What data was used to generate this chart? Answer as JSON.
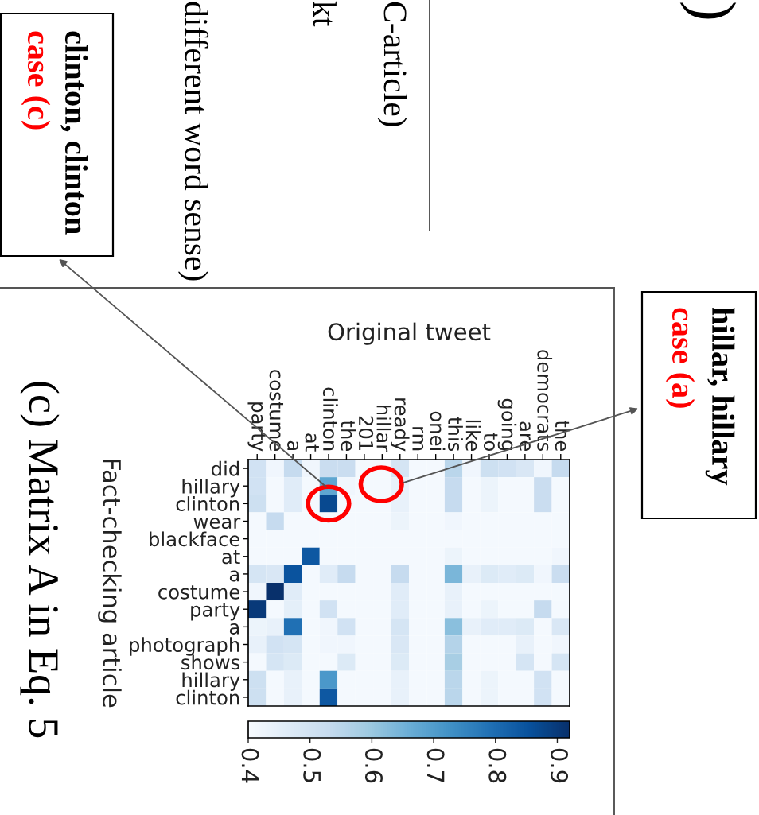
{
  "chart_data": {
    "type": "heatmap",
    "xlabel": "Original tweet",
    "ylabel": "Fact-checking article",
    "categories": [
      "party",
      "costume",
      "a",
      "at",
      "clinton",
      "the",
      "201",
      "hillar",
      "ready",
      "rm",
      "onei",
      "this",
      "like",
      "to",
      "going",
      "are",
      "democrats",
      "the"
    ],
    "y_categories": [
      "did",
      "hillary",
      "clinton",
      "wear",
      "blackface",
      "at",
      "a",
      "costume",
      "party",
      "a",
      "photograph",
      "shows",
      "hillary",
      "clinton"
    ],
    "cells": [
      [
        0.5,
        0.42,
        0.53,
        0.42,
        0.52,
        0.52,
        0.41,
        0.41,
        0.49,
        0.41,
        0.41,
        0.55,
        0.42,
        0.51,
        0.5,
        0.48,
        0.42,
        0.53
      ],
      [
        0.5,
        0.41,
        0.46,
        0.41,
        0.68,
        0.42,
        0.41,
        0.41,
        0.44,
        0.41,
        0.41,
        0.53,
        0.41,
        0.43,
        0.41,
        0.41,
        0.52,
        0.41
      ],
      [
        0.51,
        0.41,
        0.46,
        0.41,
        0.87,
        0.41,
        0.41,
        0.41,
        0.44,
        0.41,
        0.41,
        0.53,
        0.41,
        0.43,
        0.41,
        0.41,
        0.52,
        0.41
      ],
      [
        0.41,
        0.53,
        0.41,
        0.41,
        0.41,
        0.41,
        0.41,
        0.41,
        0.43,
        0.41,
        0.41,
        0.42,
        0.41,
        0.41,
        0.41,
        0.41,
        0.41,
        0.41
      ],
      [
        0.41,
        0.41,
        0.41,
        0.41,
        0.41,
        0.41,
        0.41,
        0.41,
        0.41,
        0.41,
        0.41,
        0.41,
        0.41,
        0.41,
        0.41,
        0.41,
        0.41,
        0.41
      ],
      [
        0.41,
        0.41,
        0.41,
        0.84,
        0.41,
        0.41,
        0.41,
        0.41,
        0.41,
        0.41,
        0.41,
        0.43,
        0.41,
        0.41,
        0.41,
        0.41,
        0.41,
        0.42
      ],
      [
        0.49,
        0.48,
        0.85,
        0.41,
        0.46,
        0.53,
        0.41,
        0.41,
        0.53,
        0.41,
        0.41,
        0.64,
        0.44,
        0.47,
        0.46,
        0.47,
        0.42,
        0.52
      ],
      [
        0.42,
        0.92,
        0.46,
        0.41,
        0.41,
        0.41,
        0.41,
        0.41,
        0.46,
        0.41,
        0.41,
        0.44,
        0.41,
        0.41,
        0.41,
        0.41,
        0.41,
        0.41
      ],
      [
        0.9,
        0.41,
        0.45,
        0.41,
        0.5,
        0.41,
        0.41,
        0.41,
        0.46,
        0.41,
        0.41,
        0.44,
        0.41,
        0.43,
        0.41,
        0.41,
        0.53,
        0.41
      ],
      [
        0.43,
        0.44,
        0.79,
        0.41,
        0.42,
        0.5,
        0.41,
        0.41,
        0.49,
        0.41,
        0.41,
        0.62,
        0.44,
        0.46,
        0.46,
        0.47,
        0.41,
        0.48
      ],
      [
        0.44,
        0.5,
        0.49,
        0.41,
        0.42,
        0.42,
        0.41,
        0.41,
        0.48,
        0.41,
        0.41,
        0.56,
        0.41,
        0.41,
        0.41,
        0.44,
        0.41,
        0.42
      ],
      [
        0.41,
        0.49,
        0.47,
        0.41,
        0.41,
        0.47,
        0.41,
        0.41,
        0.47,
        0.41,
        0.41,
        0.58,
        0.41,
        0.41,
        0.41,
        0.49,
        0.41,
        0.49
      ],
      [
        0.51,
        0.41,
        0.44,
        0.41,
        0.71,
        0.41,
        0.41,
        0.41,
        0.44,
        0.41,
        0.41,
        0.55,
        0.41,
        0.43,
        0.41,
        0.41,
        0.5,
        0.41
      ],
      [
        0.51,
        0.41,
        0.44,
        0.41,
        0.84,
        0.41,
        0.41,
        0.41,
        0.44,
        0.41,
        0.41,
        0.55,
        0.41,
        0.43,
        0.41,
        0.41,
        0.5,
        0.41
      ]
    ],
    "clim": [
      0.4,
      0.92
    ],
    "cticks": [
      0.4,
      0.5,
      0.6,
      0.7,
      0.8,
      0.9
    ],
    "annotations": [
      "hillar, hillary",
      "case (a)",
      "clinton, clinton",
      "case (c)",
      "(c) Matrix A in Eq. 5",
      "C-article)",
      "kt",
      "different word sense)",
      ")"
    ]
  }
}
